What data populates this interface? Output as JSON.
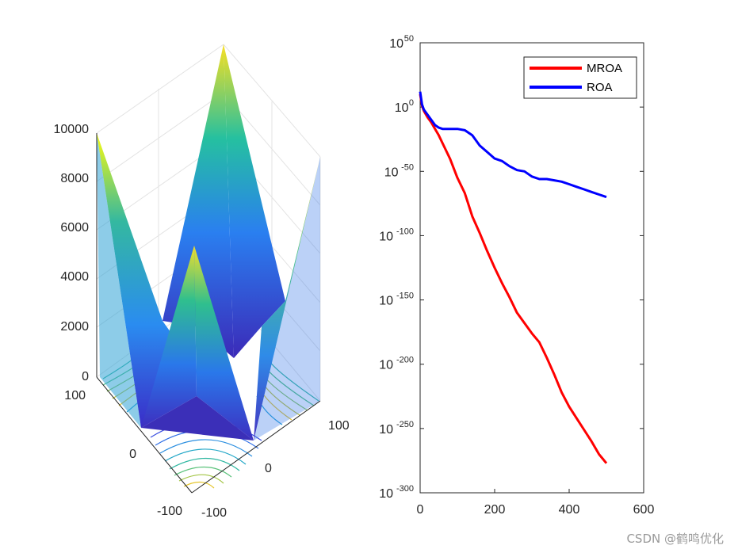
{
  "watermark": "CSDN @鹤鸣优化",
  "colors": {
    "mroa": "#ff0000",
    "roa": "#0000ff",
    "axis": "#262626",
    "grid": "#dcdcdc"
  },
  "chart_data": [
    {
      "type": "surface3d",
      "title": "",
      "z_ticks": [
        "0",
        "2000",
        "4000",
        "6000",
        "8000",
        "10000"
      ],
      "x_ticks": [
        "-100",
        "0",
        "100"
      ],
      "y_ticks": [
        "-100",
        "0",
        "100"
      ],
      "zlim": [
        0,
        10000
      ],
      "xlim": [
        -100,
        100
      ],
      "ylim": [
        -100,
        100
      ],
      "colormap": "parula",
      "contour_projection": true
    },
    {
      "type": "line",
      "yscale": "log",
      "xlim": [
        0,
        600
      ],
      "x_ticks": [
        "0",
        "200",
        "400",
        "600"
      ],
      "y_tick_exponents": [
        "50",
        "0",
        "-50",
        "-100",
        "-150",
        "-200",
        "-250",
        "-300"
      ],
      "y_tick_base": "10",
      "ylim_exponent": [
        -300,
        50
      ],
      "legend_position": "top-right",
      "series": [
        {
          "name": "MROA",
          "color": "#ff0000",
          "x": [
            0,
            5,
            10,
            20,
            30,
            40,
            50,
            60,
            80,
            100,
            120,
            140,
            160,
            180,
            200,
            220,
            240,
            260,
            280,
            300,
            320,
            340,
            360,
            380,
            400,
            420,
            440,
            460,
            480,
            500
          ],
          "log10": [
            10,
            1,
            -3,
            -8,
            -12,
            -17,
            -22,
            -28,
            -40,
            -55,
            -67,
            -85,
            -98,
            -112,
            -125,
            -137,
            -148,
            -160,
            -168,
            -176,
            -183,
            -195,
            -208,
            -222,
            -233,
            -242,
            -251,
            -260,
            -270,
            -277
          ]
        },
        {
          "name": "ROA",
          "color": "#0000ff",
          "x": [
            0,
            5,
            10,
            20,
            30,
            40,
            50,
            60,
            80,
            100,
            120,
            140,
            160,
            180,
            200,
            220,
            240,
            260,
            280,
            300,
            320,
            340,
            360,
            380,
            400,
            420,
            440,
            460,
            480,
            500
          ],
          "log10": [
            12,
            2,
            -2,
            -6,
            -10,
            -14,
            -16,
            -17,
            -17,
            -17,
            -18,
            -22,
            -30,
            -35,
            -40,
            -42,
            -46,
            -49,
            -50,
            -54,
            -56,
            -56,
            -57,
            -58,
            -60,
            -62,
            -64,
            -66,
            -68,
            -70
          ]
        }
      ]
    }
  ]
}
